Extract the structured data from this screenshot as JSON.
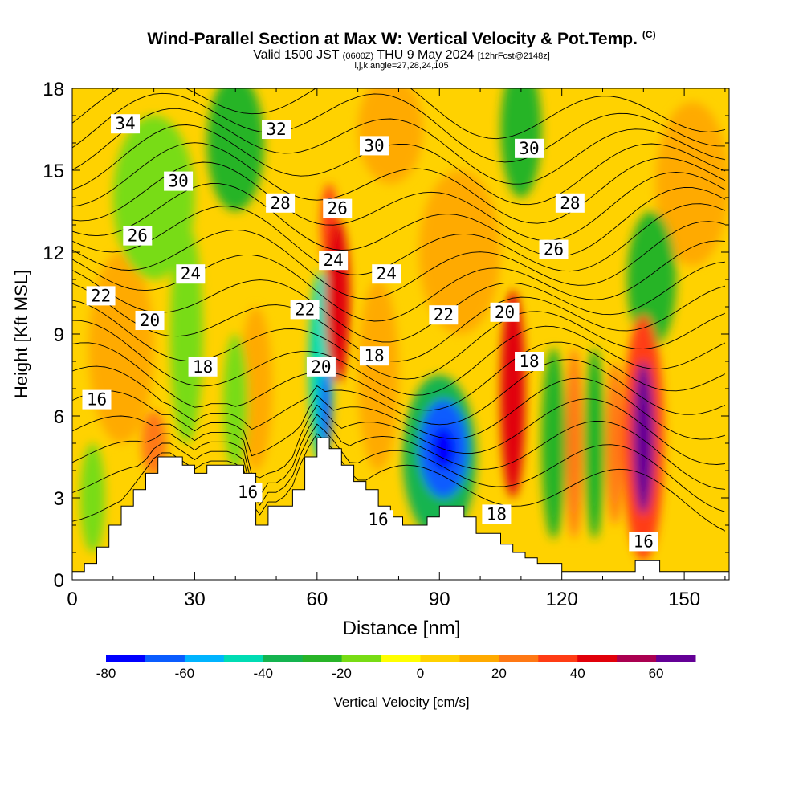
{
  "header": {
    "title": "Wind-Parallel Section at Max W: Vertical Velocity & Pot.Temp.",
    "copyright": "(C)",
    "valid_prefix": "Valid 1500 JST",
    "valid_utc": "(0600Z)",
    "valid_date": "THU 9 May 2024",
    "forecast_info": "[12hrFcst@2148z]",
    "params": "i,j,k,angle=27,28,24,105"
  },
  "chart_data": {
    "type": "heatmap",
    "xlabel": "Distance [nm]",
    "ylabel": "Height [Kft MSL]",
    "xlim": [
      0,
      161
    ],
    "ylim": [
      0,
      18
    ],
    "x_ticks": [
      0,
      30,
      60,
      90,
      120,
      150
    ],
    "y_ticks": [
      0,
      3,
      6,
      9,
      12,
      15,
      18
    ],
    "x_tick_labels": [
      "0",
      "30",
      "60",
      "90",
      "120",
      "150"
    ],
    "y_tick_labels": [
      "0",
      "3",
      "6",
      "9",
      "12",
      "15",
      "18"
    ],
    "colorbar": {
      "label": "Vertical Velocity [cm/s]",
      "levels": [
        -80,
        -70,
        -60,
        -50,
        -40,
        -30,
        -20,
        -10,
        0,
        10,
        20,
        30,
        40,
        50,
        60,
        70
      ],
      "tick_values": [
        -80,
        -60,
        -40,
        -20,
        0,
        20,
        40,
        60
      ],
      "tick_labels": [
        "-80",
        "-60",
        "-40",
        "-20",
        "0",
        "20",
        "40",
        "60"
      ],
      "colors": [
        "#0000ff",
        "#0a5cff",
        "#00b4ff",
        "#00dcb4",
        "#14b450",
        "#28b428",
        "#78dc14",
        "#ffff00",
        "#ffd200",
        "#ffaa00",
        "#ff7814",
        "#ff3c14",
        "#e1000a",
        "#aa0050",
        "#640096"
      ]
    },
    "vertical_velocity_features": [
      {
        "x": 91,
        "y": 4.8,
        "value": -78,
        "rx": 3,
        "ry": 0.8
      },
      {
        "x": 91,
        "y": 4.8,
        "value": -62,
        "rx": 6,
        "ry": 1.8
      },
      {
        "x": 90,
        "y": 4.5,
        "value": -40,
        "rx": 9,
        "ry": 3.0
      },
      {
        "x": 62,
        "y": 6.2,
        "value": -65,
        "rx": 1.5,
        "ry": 1.5
      },
      {
        "x": 61,
        "y": 7.8,
        "value": -45,
        "rx": 3,
        "ry": 3.5
      },
      {
        "x": 65,
        "y": 10.2,
        "value": 48,
        "rx": 3,
        "ry": 3
      },
      {
        "x": 63,
        "y": 13.0,
        "value": 30,
        "rx": 2,
        "ry": 1.5
      },
      {
        "x": 108,
        "y": 6.8,
        "value": 48,
        "rx": 3,
        "ry": 3.8
      },
      {
        "x": 140,
        "y": 5.2,
        "value": 60,
        "rx": 2.5,
        "ry": 2.8
      },
      {
        "x": 140,
        "y": 5.2,
        "value": 35,
        "rx": 5,
        "ry": 4.5
      },
      {
        "x": 118,
        "y": 5.0,
        "value": -25,
        "rx": 3,
        "ry": 3.5
      },
      {
        "x": 128,
        "y": 5.0,
        "value": -28,
        "rx": 2.5,
        "ry": 3.5
      },
      {
        "x": 123,
        "y": 5.0,
        "value": 25,
        "rx": 2,
        "ry": 3.5
      },
      {
        "x": 133,
        "y": 5.0,
        "value": 22,
        "rx": 2,
        "ry": 3.0
      },
      {
        "x": 110,
        "y": 16.5,
        "value": -28,
        "rx": 5,
        "ry": 2.5
      },
      {
        "x": 142,
        "y": 11.0,
        "value": -30,
        "rx": 6,
        "ry": 2.5
      },
      {
        "x": 40,
        "y": 16.0,
        "value": -25,
        "rx": 7,
        "ry": 2.5
      },
      {
        "x": 20,
        "y": 14.0,
        "value": -15,
        "rx": 10,
        "ry": 3.0
      },
      {
        "x": 28,
        "y": 9.0,
        "value": -15,
        "rx": 4,
        "ry": 4.0
      },
      {
        "x": 40,
        "y": 6.5,
        "value": -20,
        "rx": 3,
        "ry": 2.5
      },
      {
        "x": 12,
        "y": 8.5,
        "value": 12,
        "rx": 8,
        "ry": 3.5
      },
      {
        "x": 45,
        "y": 7.0,
        "value": 15,
        "rx": 4,
        "ry": 3.0
      },
      {
        "x": 75,
        "y": 7.5,
        "value": 18,
        "rx": 5,
        "ry": 3.5
      },
      {
        "x": 95,
        "y": 12.0,
        "value": 12,
        "rx": 10,
        "ry": 3.0
      },
      {
        "x": 5,
        "y": 3.0,
        "value": -15,
        "rx": 3,
        "ry": 2.0
      },
      {
        "x": 20,
        "y": 5.0,
        "value": 28,
        "rx": 3,
        "ry": 1.2
      },
      {
        "x": 78,
        "y": 16.5,
        "value": 15,
        "rx": 8,
        "ry": 2.0
      },
      {
        "x": 152,
        "y": 14.5,
        "value": 10,
        "rx": 9,
        "ry": 3.0
      }
    ],
    "terrain_profile": {
      "x": [
        0,
        3,
        6,
        9,
        12,
        15,
        18,
        21,
        24,
        27,
        30,
        33,
        36,
        39,
        42,
        45,
        48,
        51,
        54,
        57,
        60,
        63,
        66,
        69,
        72,
        75,
        78,
        81,
        84,
        87,
        90,
        93,
        96,
        99,
        102,
        105,
        108,
        111,
        114,
        117,
        120,
        123,
        126,
        129,
        132,
        135,
        138,
        141,
        144,
        147,
        150,
        153,
        156,
        159,
        161
      ],
      "height": [
        0.3,
        0.6,
        1.2,
        2.0,
        2.7,
        3.3,
        3.9,
        4.5,
        4.5,
        4.2,
        3.9,
        4.2,
        4.2,
        4.2,
        3.9,
        2.0,
        2.7,
        2.7,
        3.3,
        4.5,
        5.2,
        4.8,
        4.2,
        3.6,
        3.3,
        2.7,
        2.3,
        2.0,
        2.0,
        2.3,
        2.7,
        2.7,
        2.3,
        1.7,
        1.7,
        1.3,
        1.0,
        0.8,
        0.6,
        0.6,
        0.3,
        0.3,
        0.3,
        0.3,
        0.3,
        0.3,
        0.7,
        0.7,
        0.3,
        0.3,
        0.3,
        0.3,
        0.3,
        0.3,
        0.3
      ]
    },
    "potential_temperature_contour_labels": [
      {
        "x": 13,
        "y": 16.7,
        "value": "34"
      },
      {
        "x": 50,
        "y": 16.5,
        "value": "32"
      },
      {
        "x": 74,
        "y": 15.9,
        "value": "30"
      },
      {
        "x": 112,
        "y": 15.8,
        "value": "30"
      },
      {
        "x": 26,
        "y": 14.6,
        "value": "30"
      },
      {
        "x": 51,
        "y": 13.8,
        "value": "28"
      },
      {
        "x": 122,
        "y": 13.8,
        "value": "28"
      },
      {
        "x": 65,
        "y": 13.6,
        "value": "26"
      },
      {
        "x": 16,
        "y": 12.6,
        "value": "26"
      },
      {
        "x": 118,
        "y": 12.1,
        "value": "26"
      },
      {
        "x": 64,
        "y": 11.7,
        "value": "24"
      },
      {
        "x": 29,
        "y": 11.2,
        "value": "24"
      },
      {
        "x": 77,
        "y": 11.2,
        "value": "24"
      },
      {
        "x": 7,
        "y": 10.4,
        "value": "22"
      },
      {
        "x": 57,
        "y": 9.9,
        "value": "22"
      },
      {
        "x": 91,
        "y": 9.7,
        "value": "22"
      },
      {
        "x": 106,
        "y": 9.8,
        "value": "20"
      },
      {
        "x": 19,
        "y": 9.5,
        "value": "20"
      },
      {
        "x": 61,
        "y": 7.8,
        "value": "20"
      },
      {
        "x": 74,
        "y": 8.2,
        "value": "18"
      },
      {
        "x": 112,
        "y": 8.0,
        "value": "18"
      },
      {
        "x": 32,
        "y": 7.8,
        "value": "18"
      },
      {
        "x": 6,
        "y": 6.6,
        "value": "16"
      },
      {
        "x": 43,
        "y": 3.2,
        "value": "16"
      },
      {
        "x": 75,
        "y": 2.2,
        "value": "16"
      },
      {
        "x": 104,
        "y": 2.4,
        "value": "18"
      },
      {
        "x": 140,
        "y": 1.4,
        "value": "16"
      }
    ],
    "potential_temperature_levels": [
      15,
      16,
      17,
      18,
      19,
      20,
      21,
      22,
      23,
      24,
      25,
      26,
      27,
      28,
      29,
      30,
      31,
      32,
      33,
      34,
      35
    ],
    "grid": false
  }
}
